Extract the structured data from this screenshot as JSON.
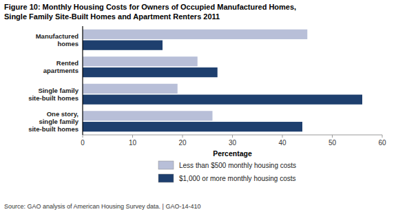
{
  "chart_data": {
    "type": "bar",
    "orientation": "horizontal",
    "title": "Figure 10: Monthly Housing Costs for Owners of Occupied Manufactured Homes,",
    "subtitle": "Single Family Site-Built Homes and Apartment Renters 2011",
    "categories": [
      "Manufactured\nhomes",
      "Rented\napartments",
      "Single family\nsite-built homes",
      "One story,\nsingle family\nsite-built homes"
    ],
    "series": [
      {
        "name": "Less than $500 monthly housing costs",
        "color": "#b8bfd8",
        "values": [
          45,
          23,
          19,
          26
        ]
      },
      {
        "name": "$1,000 or more monthly housing costs",
        "color": "#1e3f6e",
        "values": [
          16,
          27,
          56,
          44
        ]
      }
    ],
    "xlabel": "Percentage",
    "xlim": [
      0,
      60
    ],
    "xticks": [
      0,
      10,
      20,
      30,
      40,
      50,
      60
    ],
    "grid": false,
    "legend": "bottom",
    "annotations": [
      "Source: GAO analysis of American Housing Survey data.  |  GAO-14-410"
    ]
  }
}
